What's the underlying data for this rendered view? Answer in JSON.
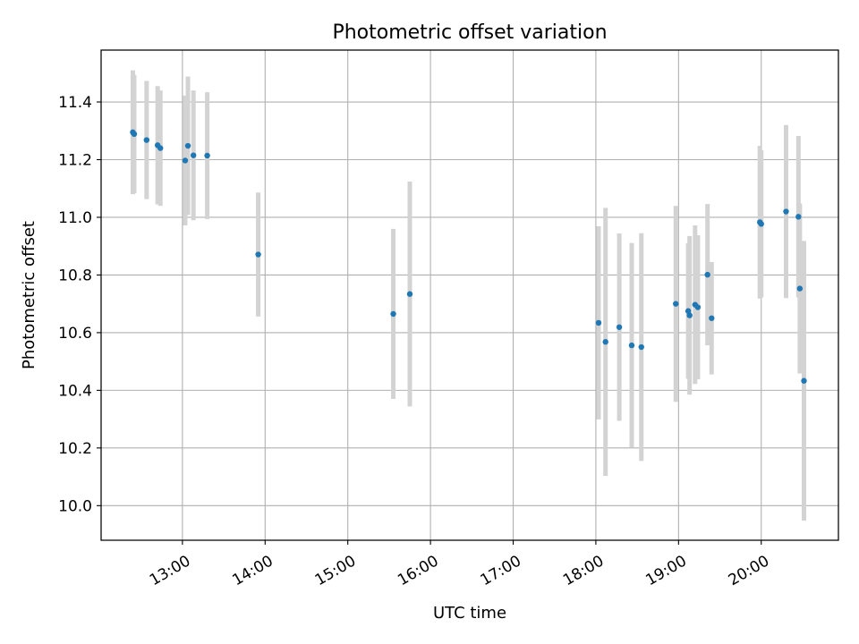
{
  "chart_data": {
    "type": "scatter",
    "title": "Photometric offset variation",
    "xlabel": "UTC time",
    "ylabel": "Photometric offset",
    "x_axis_type": "time",
    "xlim": [
      "12:01",
      "20:56"
    ],
    "ylim": [
      9.88,
      11.58
    ],
    "x_ticks": [
      "13:00",
      "14:00",
      "15:00",
      "16:00",
      "17:00",
      "18:00",
      "19:00",
      "20:00"
    ],
    "y_ticks": [
      10.0,
      10.2,
      10.4,
      10.6,
      10.8,
      11.0,
      11.2,
      11.4
    ],
    "y_tick_labels": [
      "10.0",
      "10.2",
      "10.4",
      "10.6",
      "10.8",
      "11.0",
      "11.2",
      "11.4"
    ],
    "grid": true,
    "marker_color": "#1f77b4",
    "errorbar_color": "#d3d3d3",
    "points": [
      {
        "x": "12:24",
        "y": 11.295,
        "yerr_low": 0.215,
        "yerr_high": 0.215
      },
      {
        "x": "12:25",
        "y": 11.289,
        "yerr_low": 0.205,
        "yerr_high": 0.205
      },
      {
        "x": "12:34",
        "y": 11.268,
        "yerr_low": 0.205,
        "yerr_high": 0.205
      },
      {
        "x": "12:42",
        "y": 11.25,
        "yerr_low": 0.205,
        "yerr_high": 0.205
      },
      {
        "x": "12:44",
        "y": 11.24,
        "yerr_low": 0.2,
        "yerr_high": 0.2
      },
      {
        "x": "13:02",
        "y": 11.197,
        "yerr_low": 0.225,
        "yerr_high": 0.225
      },
      {
        "x": "13:04",
        "y": 11.248,
        "yerr_low": 0.24,
        "yerr_high": 0.24
      },
      {
        "x": "13:08",
        "y": 11.215,
        "yerr_low": 0.225,
        "yerr_high": 0.225
      },
      {
        "x": "13:18",
        "y": 11.214,
        "yerr_low": 0.22,
        "yerr_high": 0.22
      },
      {
        "x": "13:55",
        "y": 10.871,
        "yerr_low": 0.215,
        "yerr_high": 0.215
      },
      {
        "x": "15:33",
        "y": 10.665,
        "yerr_low": 0.295,
        "yerr_high": 0.295
      },
      {
        "x": "15:45",
        "y": 10.734,
        "yerr_low": 0.39,
        "yerr_high": 0.39
      },
      {
        "x": "18:02",
        "y": 10.634,
        "yerr_low": 0.335,
        "yerr_high": 0.335
      },
      {
        "x": "18:07",
        "y": 10.568,
        "yerr_low": 0.465,
        "yerr_high": 0.465
      },
      {
        "x": "18:17",
        "y": 10.619,
        "yerr_low": 0.325,
        "yerr_high": 0.325
      },
      {
        "x": "18:26",
        "y": 10.556,
        "yerr_low": 0.355,
        "yerr_high": 0.355
      },
      {
        "x": "18:33",
        "y": 10.55,
        "yerr_low": 0.395,
        "yerr_high": 0.395
      },
      {
        "x": "18:58",
        "y": 10.7,
        "yerr_low": 0.34,
        "yerr_high": 0.34
      },
      {
        "x": "19:07",
        "y": 10.675,
        "yerr_low": 0.235,
        "yerr_high": 0.235
      },
      {
        "x": "19:08",
        "y": 10.66,
        "yerr_low": 0.275,
        "yerr_high": 0.275
      },
      {
        "x": "19:12",
        "y": 10.697,
        "yerr_low": 0.275,
        "yerr_high": 0.275
      },
      {
        "x": "19:14",
        "y": 10.688,
        "yerr_low": 0.25,
        "yerr_high": 0.25
      },
      {
        "x": "19:21",
        "y": 10.801,
        "yerr_low": 0.245,
        "yerr_high": 0.245
      },
      {
        "x": "19:24",
        "y": 10.65,
        "yerr_low": 0.195,
        "yerr_high": 0.195
      },
      {
        "x": "19:59",
        "y": 10.983,
        "yerr_low": 0.265,
        "yerr_high": 0.265
      },
      {
        "x": "20:00",
        "y": 10.977,
        "yerr_low": 0.255,
        "yerr_high": 0.255
      },
      {
        "x": "20:18",
        "y": 11.02,
        "yerr_low": 0.3,
        "yerr_high": 0.3
      },
      {
        "x": "20:27",
        "y": 11.002,
        "yerr_low": 0.28,
        "yerr_high": 0.28
      },
      {
        "x": "20:28",
        "y": 10.753,
        "yerr_low": 0.295,
        "yerr_high": 0.295
      },
      {
        "x": "20:31",
        "y": 10.433,
        "yerr_low": 0.485,
        "yerr_high": 0.485
      }
    ]
  }
}
